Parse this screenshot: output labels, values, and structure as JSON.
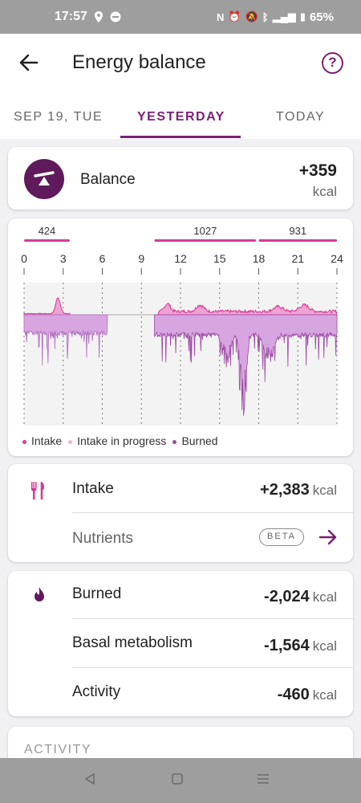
{
  "status_bar": {
    "time": "17:57",
    "battery": "65%"
  },
  "app_bar": {
    "title": "Energy balance"
  },
  "tabs": [
    {
      "label": "SEP 19, TUE"
    },
    {
      "label": "YESTERDAY"
    },
    {
      "label": "TODAY"
    }
  ],
  "balance": {
    "label": "Balance",
    "value": "+359",
    "unit": "kcal"
  },
  "chart_data": {
    "type": "area",
    "x_ticks": [
      "0",
      "3",
      "6",
      "9",
      "12",
      "15",
      "18",
      "21",
      "24"
    ],
    "xlim": [
      0,
      24
    ],
    "segments": [
      {
        "label": "424",
        "start_hour": 0,
        "end_hour": 3.5
      },
      {
        "label": "1027",
        "start_hour": 10,
        "end_hour": 17.8
      },
      {
        "label": "931",
        "start_hour": 18,
        "end_hour": 24
      }
    ],
    "legend": [
      {
        "label": "Intake",
        "color": "#d63a9a"
      },
      {
        "label": "Intake in progress",
        "color": "#f2b3d8"
      },
      {
        "label": "Burned",
        "color": "#9c4aa4"
      }
    ],
    "grid": true
  },
  "intake": {
    "label": "Intake",
    "value": "+2,383",
    "unit": "kcal",
    "nutrients_label": "Nutrients",
    "badge": "BETA"
  },
  "burned": {
    "label": "Burned",
    "value": "-2,024",
    "unit": "kcal",
    "rows": [
      {
        "label": "Basal metabolism",
        "value": "-1,564",
        "unit": "kcal"
      },
      {
        "label": "Activity",
        "value": "-460",
        "unit": "kcal"
      }
    ]
  },
  "activity": {
    "heading": "ACTIVITY"
  },
  "icons": {
    "back": "arrow-left-icon",
    "help": "help-circle-icon",
    "balance": "scale-icon",
    "intake": "fork-knife-icon",
    "burned": "flame-icon",
    "nutrients": "arrow-right-icon"
  },
  "colors": {
    "accent": "#7b1f73",
    "intake": "#d63a9a",
    "burned": "#9c4aa4"
  }
}
